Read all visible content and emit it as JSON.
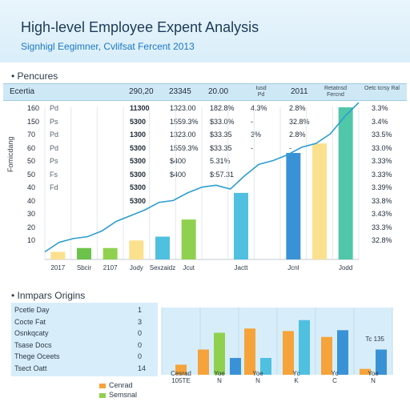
{
  "header": {
    "title": "High-level Employee Expent Analysis",
    "subtitle": "Signhigl Eegimner, Cvlifsat Fercent 2013"
  },
  "sections": {
    "top_label": "Pencures",
    "bottom_label": "Inmpars Origins"
  },
  "table": {
    "headers": [
      "Ecertia",
      "290,20",
      "23345",
      "20.00",
      "Iusd Pd",
      "2011",
      "Retatnsd Fercnd",
      "Oetc tcrsy Ral"
    ],
    "rows": [
      {
        "c0": "160",
        "c1": "Pd",
        "c2": "11300",
        "c3": "1323.00",
        "c4": "182.8%",
        "c5": "4.3%",
        "c6": "2.8%",
        "c7": "3.3%"
      },
      {
        "c0": "150",
        "c1": "Ps",
        "c2": "5300",
        "c3": "1559.3%",
        "c4": "$33.0%",
        "c5": "-",
        "c6": "32.8%",
        "c7": "3.4%"
      },
      {
        "c0": "70",
        "c1": "Pd",
        "c2": "1300",
        "c3": "1323.00",
        "c4": "$33.35",
        "c5": "3%",
        "c6": "2.8%",
        "c7": "33.5%"
      },
      {
        "c0": "60",
        "c1": "Pd",
        "c2": "5300",
        "c3": "1559.3%",
        "c4": "$33.35",
        "c5": "-",
        "c6": "-",
        "c7": "33.0%"
      },
      {
        "c0": "50",
        "c1": "Ps",
        "c2": "5300",
        "c3": "$400",
        "c4": "5.31%",
        "c5": "",
        "c6": "",
        "c7": "3.33%"
      },
      {
        "c0": "50",
        "c1": "Fs",
        "c2": "5300",
        "c3": "$400",
        "c4": "$:57.31",
        "c5": "",
        "c6": "",
        "c7": "3.33%"
      },
      {
        "c0": "40",
        "c1": "Fd",
        "c2": "5300",
        "c3": "",
        "c4": "",
        "c5": "",
        "c6": "",
        "c7": "3.39%"
      },
      {
        "c0": "40",
        "c1": "",
        "c2": "5300",
        "c3": "",
        "c4": "",
        "c5": "",
        "c6": "",
        "c7": "33.8%"
      },
      {
        "c0": "30",
        "c1": "",
        "c2": "",
        "c3": "",
        "c4": "",
        "c5": "",
        "c6": "",
        "c7": "3.43%"
      },
      {
        "c0": "20",
        "c1": "",
        "c2": "",
        "c3": "",
        "c4": "",
        "c5": "",
        "c6": "",
        "c7": "33.3%"
      },
      {
        "c0": "10",
        "c1": "",
        "c2": "",
        "c3": "",
        "c4": "",
        "c5": "",
        "c6": "",
        "c7": "32.8%"
      }
    ]
  },
  "secondary_table": {
    "rows": [
      {
        "label": "Pcetle Day",
        "value": "1"
      },
      {
        "label": "Cocte Fat",
        "value": "3"
      },
      {
        "label": "Osnkqcaty",
        "value": "0"
      },
      {
        "label": "Tsase Docs",
        "value": "0"
      },
      {
        "label": "Thege Oceets",
        "value": "0"
      },
      {
        "label": "Tsect Oatt",
        "value": "14"
      }
    ]
  },
  "legend2": {
    "items": [
      {
        "label": "Cenrad",
        "color": "#f5a33a"
      },
      {
        "label": "Semsnal",
        "color": "#8fd14f"
      }
    ]
  },
  "chart_data": [
    {
      "type": "bar",
      "y_axis_label": "Fomicdang",
      "ylim": [
        0,
        160
      ],
      "y_ticks": [
        "160",
        "150",
        "70",
        "60",
        "50",
        "50",
        "40",
        "40",
        "30",
        "20",
        "10"
      ],
      "categories": [
        "2017",
        "Sbcir",
        "2107",
        "Jody",
        "Sexzaidz",
        "Jcut",
        "",
        "Jactt",
        "",
        "Jcnl",
        "",
        "Jodd"
      ],
      "values": [
        8,
        12,
        12,
        20,
        24,
        42,
        0,
        70,
        0,
        112,
        122,
        160
      ],
      "bar_colors": [
        "#fbe08e",
        "#6cc24a",
        "#8fd14f",
        "#fbe08e",
        "#4fc0e0",
        "#8fd14f",
        "#ffffff",
        "#4fc0e0",
        "#ffffff",
        "#3a92d6",
        "#fbe08e",
        "#4fc7a8"
      ],
      "line_series": {
        "name": "Trend",
        "color": "#2d9dd0",
        "values": [
          8,
          18,
          22,
          24,
          30,
          40,
          46,
          52,
          60,
          62,
          70,
          76,
          78,
          74,
          88,
          100,
          104,
          110,
          118,
          122,
          132,
          150,
          165
        ]
      }
    },
    {
      "type": "bar",
      "categories": [
        "Cesrad\n105TE",
        "Yoe\nN",
        "Yoe\nN",
        "Yc\nK",
        "Yc\nC",
        "Yoe\nN"
      ],
      "series": [
        {
          "color": "#f5a33a",
          "values": [
            12,
            30,
            55,
            52,
            45,
            7
          ]
        },
        {
          "color": "#8fd14f",
          "values": [
            0,
            50,
            0,
            0,
            0,
            0
          ]
        },
        {
          "color": "#3a92d6",
          "values": [
            0,
            20,
            0,
            0,
            53,
            30
          ]
        },
        {
          "color": "#4fc0e0",
          "values": [
            0,
            0,
            20,
            65,
            0,
            0
          ]
        }
      ],
      "annotation": "Tc 135",
      "ylim": [
        0,
        80
      ]
    }
  ]
}
